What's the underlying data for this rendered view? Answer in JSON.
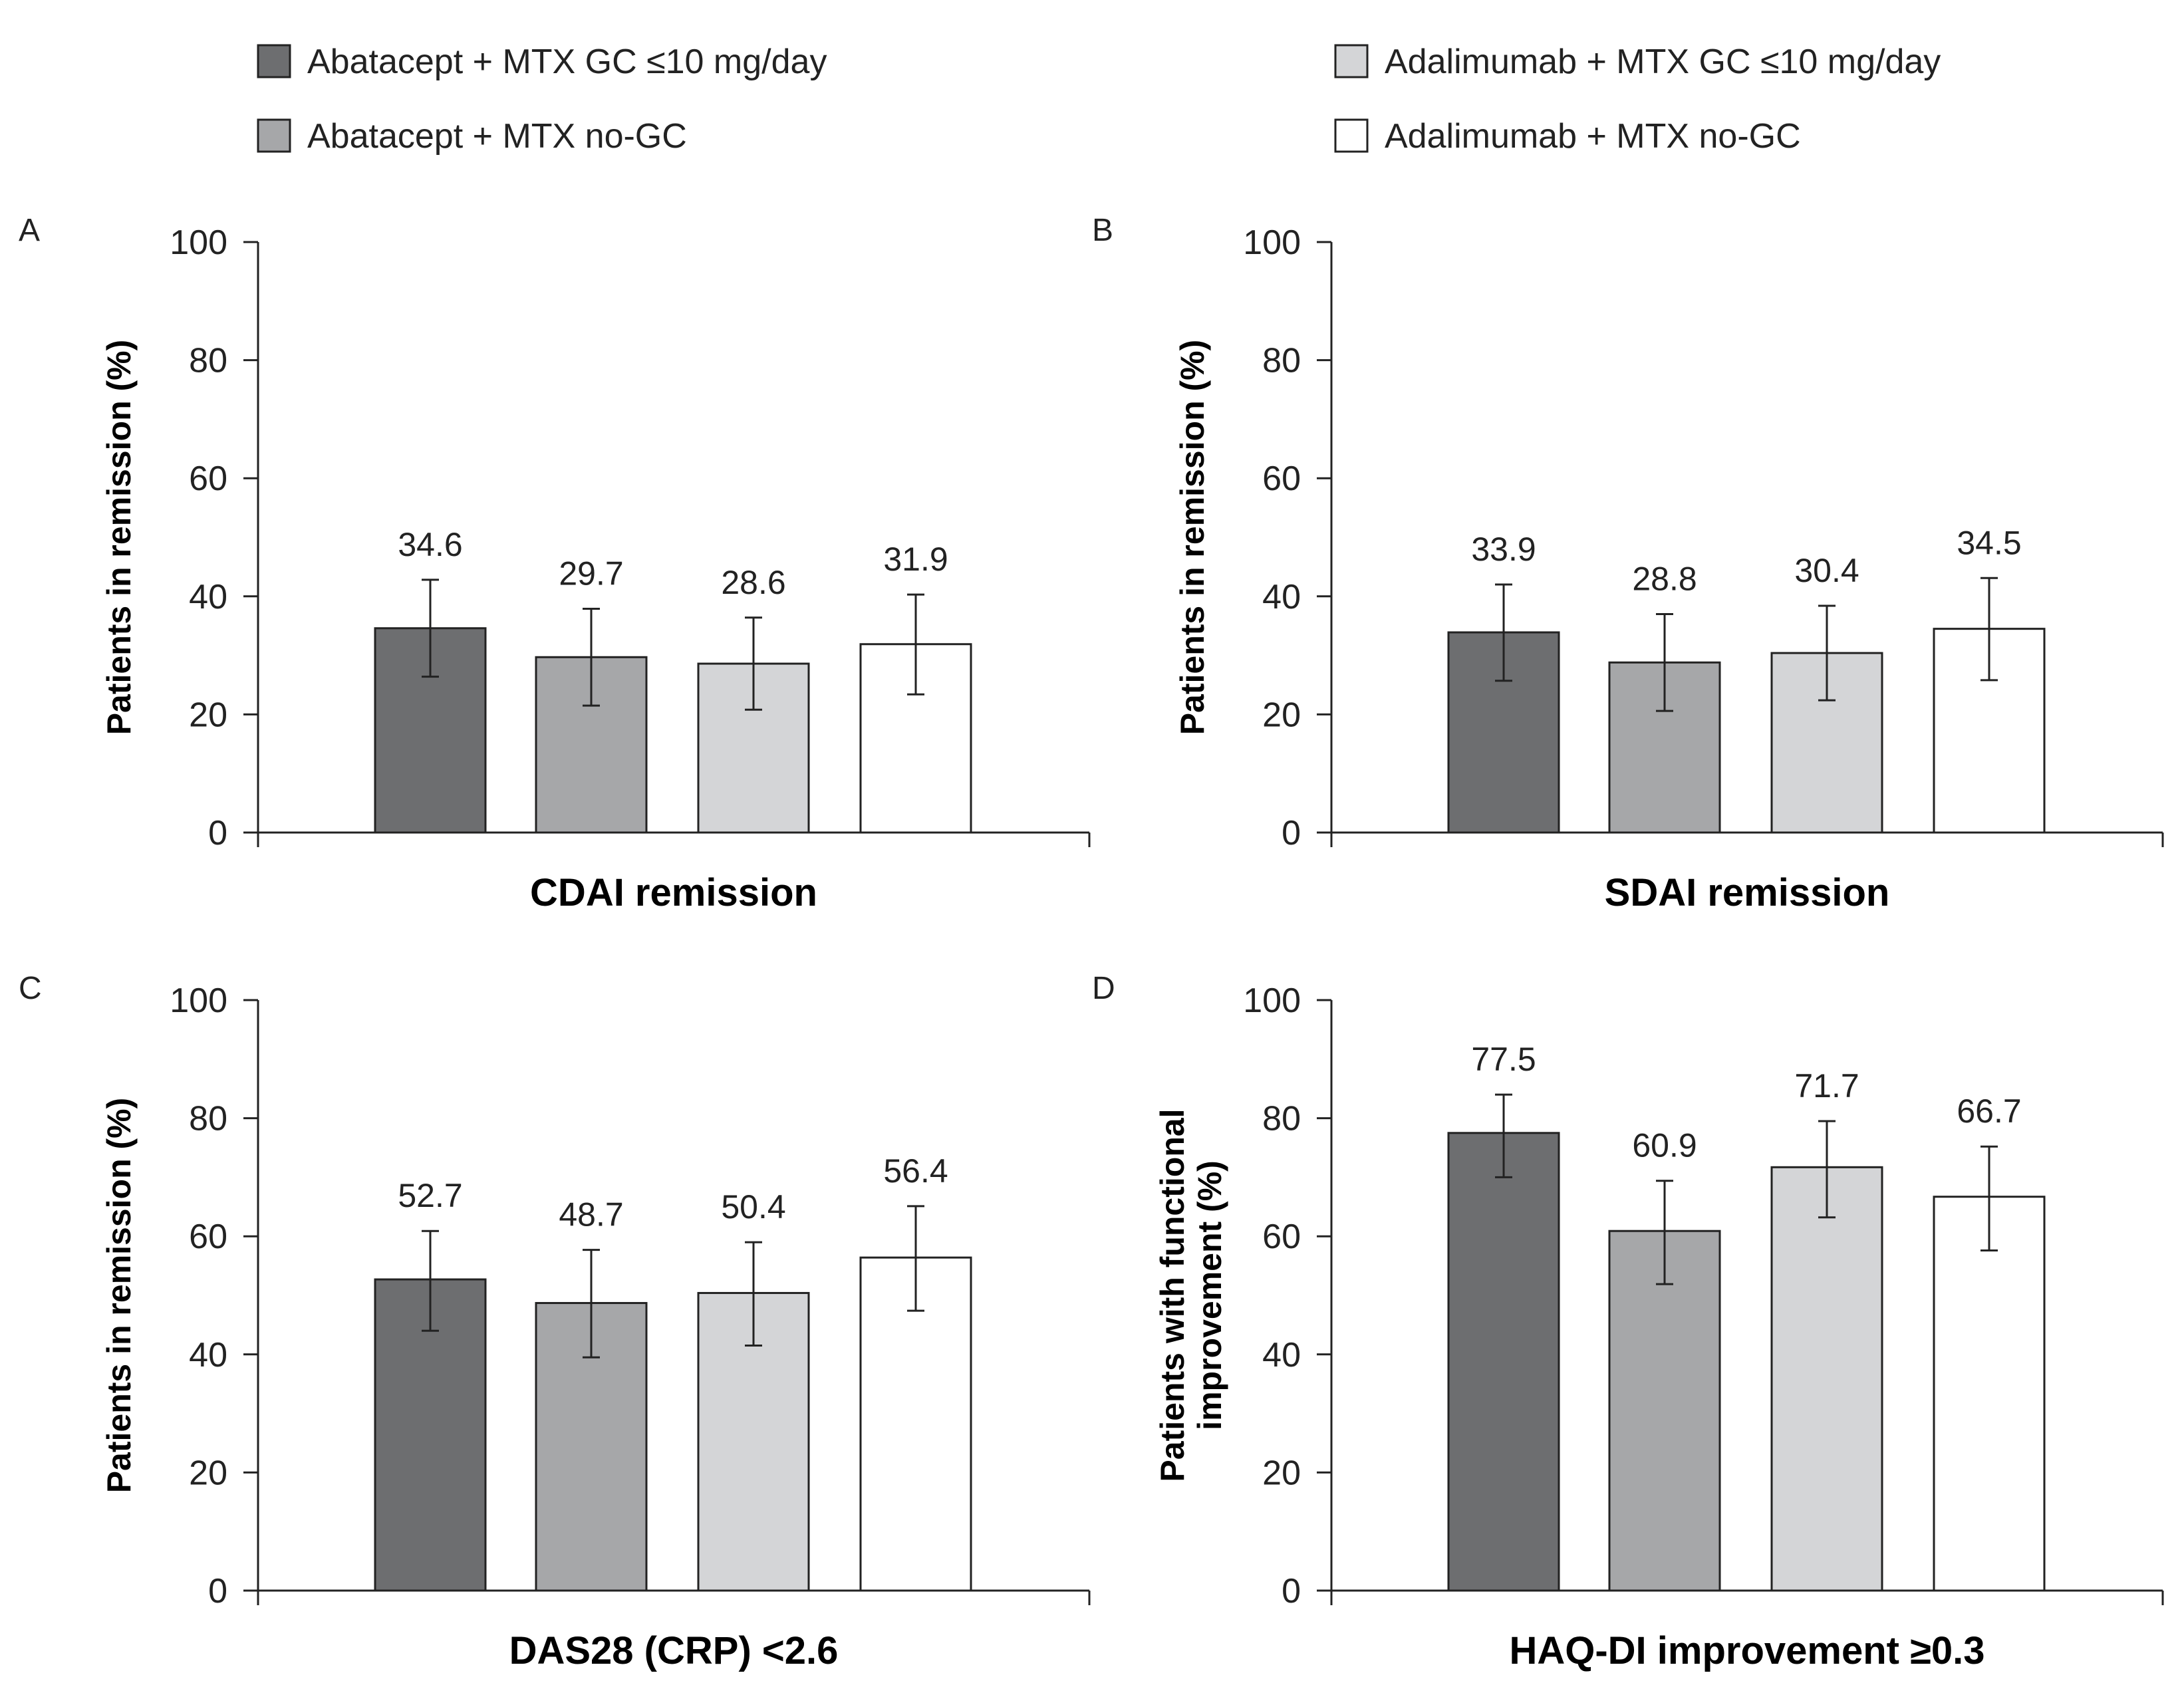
{
  "colors": {
    "abatacept_gc": "#6d6e70",
    "abatacept_nogc": "#a6a7a9",
    "adalimumab_gc": "#d4d5d7",
    "adalimumab_nogc": "#ffffff",
    "stroke": "#222222"
  },
  "chart_data": [
    {
      "type": "bar",
      "panel": "A",
      "xlabel": "CDAI remission",
      "ylabel": [
        "Patients in remission (%)"
      ],
      "ylim": [
        0,
        100
      ],
      "yticks": [
        0,
        20,
        40,
        60,
        80,
        100
      ],
      "legend": "top",
      "series": [
        {
          "name": "Abatacept + MTX GC ≤10 mg/day",
          "value": 34.6,
          "label": "34.6",
          "error": [
            26.4,
            42.8
          ]
        },
        {
          "name": "Abatacept + MTX no-GC",
          "value": 29.7,
          "label": "29.7",
          "error": [
            21.5,
            37.9
          ]
        },
        {
          "name": "Adalimumab + MTX GC ≤10 mg/day",
          "value": 28.6,
          "label": "28.6",
          "error": [
            20.8,
            36.4
          ]
        },
        {
          "name": "Adalimumab + MTX no-GC",
          "value": 31.9,
          "label": "31.9",
          "error": [
            23.4,
            40.3
          ]
        }
      ]
    },
    {
      "type": "bar",
      "panel": "B",
      "xlabel": "SDAI remission",
      "ylabel": [
        "Patients in remission (%)"
      ],
      "ylim": [
        0,
        100
      ],
      "yticks": [
        0,
        20,
        40,
        60,
        80,
        100
      ],
      "legend": "top",
      "series": [
        {
          "name": "Abatacept + MTX GC ≤10 mg/day",
          "value": 33.9,
          "label": "33.9",
          "error": [
            25.7,
            42.0
          ]
        },
        {
          "name": "Abatacept + MTX no-GC",
          "value": 28.8,
          "label": "28.8",
          "error": [
            20.6,
            37.0
          ]
        },
        {
          "name": "Adalimumab + MTX GC ≤10 mg/day",
          "value": 30.4,
          "label": "30.4",
          "error": [
            22.4,
            38.4
          ]
        },
        {
          "name": "Adalimumab + MTX no-GC",
          "value": 34.5,
          "label": "34.5",
          "error": [
            25.8,
            43.1
          ]
        }
      ]
    },
    {
      "type": "bar",
      "panel": "C",
      "xlabel": "DAS28 (CRP) <2.6",
      "ylabel": [
        "Patients in remission (%)"
      ],
      "ylim": [
        0,
        100
      ],
      "yticks": [
        0,
        20,
        40,
        60,
        80,
        100
      ],
      "legend": "top",
      "series": [
        {
          "name": "Abatacept + MTX GC ≤10 mg/day",
          "value": 52.7,
          "label": "52.7",
          "error": [
            44.0,
            60.9
          ]
        },
        {
          "name": "Abatacept + MTX no-GC",
          "value": 48.7,
          "label": "48.7",
          "error": [
            39.5,
            57.7
          ]
        },
        {
          "name": "Adalimumab + MTX GC ≤10 mg/day",
          "value": 50.4,
          "label": "50.4",
          "error": [
            41.5,
            59.0
          ]
        },
        {
          "name": "Adalimumab + MTX no-GC",
          "value": 56.4,
          "label": "56.4",
          "error": [
            47.4,
            65.1
          ]
        }
      ]
    },
    {
      "type": "bar",
      "panel": "D",
      "xlabel": "HAQ-DI improvement ≥0.3",
      "ylabel": [
        "Patients with functional",
        "improvement (%)"
      ],
      "ylim": [
        0,
        100
      ],
      "yticks": [
        0,
        20,
        40,
        60,
        80,
        100
      ],
      "legend": "top",
      "series": [
        {
          "name": "Abatacept + MTX GC ≤10 mg/day",
          "value": 77.5,
          "label": "77.5",
          "error": [
            70.0,
            84.0
          ]
        },
        {
          "name": "Abatacept + MTX no-GC",
          "value": 60.9,
          "label": "60.9",
          "error": [
            51.9,
            69.4
          ]
        },
        {
          "name": "Adalimumab + MTX GC ≤10 mg/day",
          "value": 71.7,
          "label": "71.7",
          "error": [
            63.2,
            79.5
          ]
        },
        {
          "name": "Adalimumab + MTX no-GC",
          "value": 66.7,
          "label": "66.7",
          "error": [
            57.6,
            75.2
          ]
        }
      ]
    }
  ],
  "legend": {
    "items": [
      {
        "key": "abatacept_gc",
        "label": "Abatacept + MTX GC ≤10 mg/day"
      },
      {
        "key": "abatacept_nogc",
        "label": "Abatacept + MTX no-GC"
      },
      {
        "key": "adalimumab_gc",
        "label": "Adalimumab + MTX GC ≤10 mg/day"
      },
      {
        "key": "adalimumab_nogc",
        "label": "Adalimumab + MTX no-GC"
      }
    ]
  }
}
